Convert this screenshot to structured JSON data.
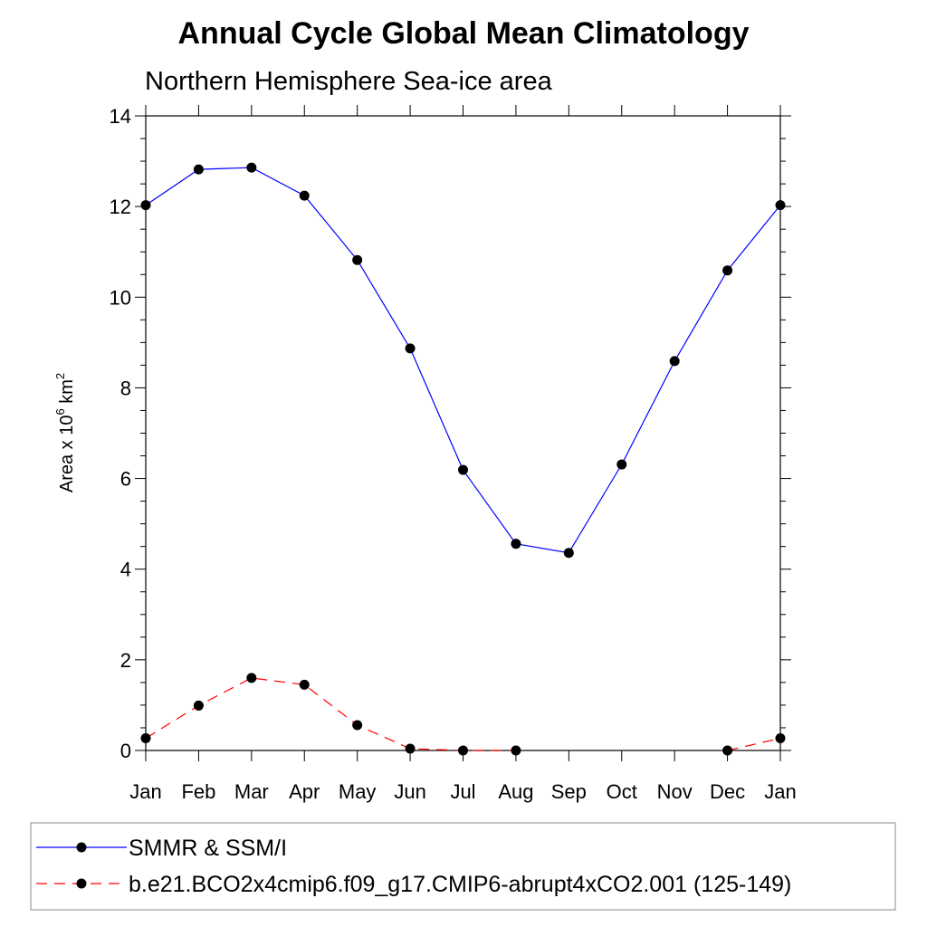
{
  "chart_data": {
    "type": "line",
    "title": "Annual Cycle Global Mean Climatology",
    "subtitle": "Northern Hemisphere Sea-ice area",
    "ylabel": {
      "prefix": "Area x 10",
      "exponent": "6",
      "unit": " km",
      "unit_exponent": "2"
    },
    "xlabel": "",
    "categories": [
      "Jan",
      "Feb",
      "Mar",
      "Apr",
      "May",
      "Jun",
      "Jul",
      "Aug",
      "Sep",
      "Oct",
      "Nov",
      "Dec",
      "Jan"
    ],
    "ylim": [
      0,
      14
    ],
    "yticks": [
      "0",
      "2",
      "4",
      "6",
      "8",
      "10",
      "12",
      "14"
    ],
    "series": [
      {
        "name": "SMMR & SSM/I",
        "color": "#0000ff",
        "dash": "solid",
        "values": [
          12.03,
          12.82,
          12.86,
          12.24,
          10.82,
          8.87,
          6.19,
          4.56,
          4.36,
          6.31,
          8.59,
          10.59,
          12.03
        ]
      },
      {
        "name": "b.e21.BCO2x4cmip6.f09_g17.CMIP6-abrupt4xCO2.001 (125-149)",
        "color": "#ff0000",
        "dash": "dashed",
        "values": [
          0.27,
          0.99,
          1.6,
          1.45,
          0.56,
          0.04,
          0.0,
          0.0,
          null,
          null,
          null,
          0.0,
          0.27
        ]
      }
    ],
    "grid": false,
    "legend_position": "bottom"
  }
}
